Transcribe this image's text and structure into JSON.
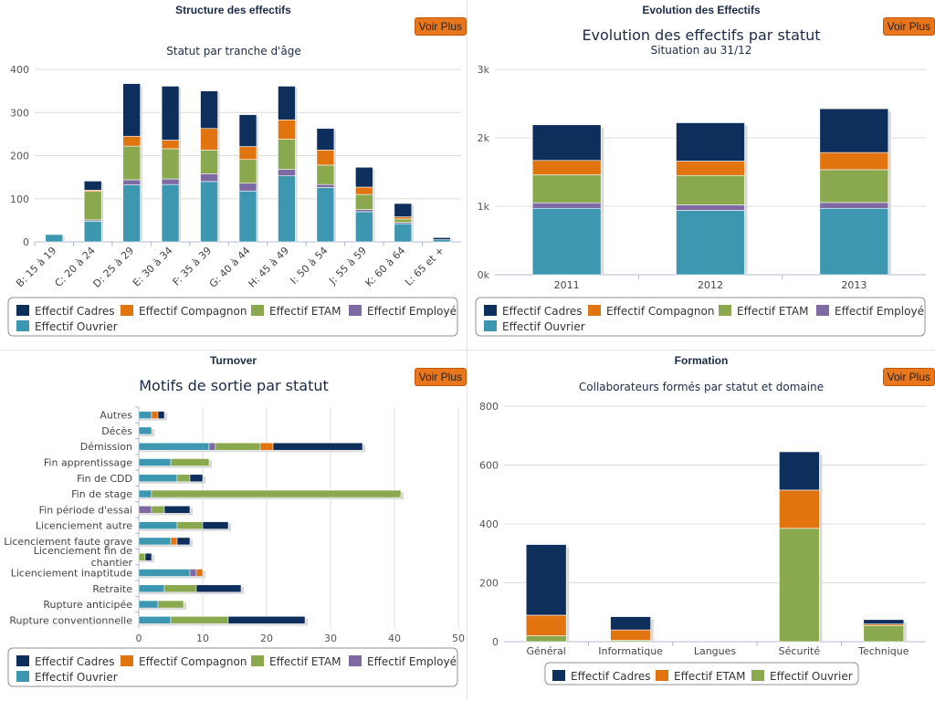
{
  "colors": {
    "cadres": "#0e2e5c",
    "compagnon": "#e2740f",
    "etam": "#8aa84e",
    "employe": "#7d6aa3",
    "ouvrier": "#3d97b1"
  },
  "panels": [
    {
      "header": "Structure des effectifs",
      "button": "Voir Plus"
    },
    {
      "header": "Evolution des Effectifs",
      "button": "Voir Plus"
    },
    {
      "header": "Turnover",
      "button": "Voir Plus"
    },
    {
      "header": "Formation",
      "button": "Voir Plus"
    }
  ],
  "chart_data": [
    {
      "type": "bar",
      "stacked": true,
      "title": "Statut par tranche d'âge",
      "ylim": [
        0,
        400
      ],
      "yticks": [
        0,
        100,
        200,
        300,
        400
      ],
      "grid": true,
      "legend_position": "bottom",
      "categories": [
        "B: 15 à 19",
        "C: 20 à 24",
        "D: 25 à 29",
        "E: 30 à 34",
        "F: 35 à 39",
        "G: 40 à 44",
        "H: 45 à 49",
        "I: 50 à 54",
        "J: 55 à 59",
        "K: 60 à 64",
        "L: 65 et +"
      ],
      "series": [
        {
          "name": "Effectif Ouvrier",
          "key": "ouvrier",
          "values": [
            17,
            48,
            132,
            133,
            140,
            118,
            153,
            126,
            70,
            42,
            5
          ]
        },
        {
          "name": "Effectif Employé",
          "key": "employe",
          "values": [
            0,
            3,
            12,
            13,
            18,
            18,
            15,
            7,
            5,
            3,
            0
          ]
        },
        {
          "name": "Effectif ETAM",
          "key": "etam",
          "values": [
            0,
            66,
            78,
            70,
            55,
            55,
            70,
            45,
            35,
            8,
            0
          ]
        },
        {
          "name": "Effectif Compagnon",
          "key": "compagnon",
          "values": [
            0,
            3,
            23,
            20,
            50,
            30,
            45,
            35,
            17,
            5,
            0
          ]
        },
        {
          "name": "Effectif Cadres",
          "key": "cadres",
          "values": [
            0,
            21,
            122,
            125,
            87,
            74,
            78,
            50,
            46,
            31,
            5
          ]
        }
      ],
      "legend": [
        "Effectif Cadres",
        "Effectif Compagnon",
        "Effectif ETAM",
        "Effectif Employé",
        "Effectif Ouvrier"
      ]
    },
    {
      "type": "bar",
      "stacked": true,
      "title": "Evolution des effectifs par statut",
      "subtitle": "Situation au 31/12",
      "ylim": [
        0,
        3000
      ],
      "yticks": [
        "0k",
        "1k",
        "2k",
        "3k"
      ],
      "grid": true,
      "legend_position": "bottom",
      "categories": [
        "2011",
        "2012",
        "2013"
      ],
      "series": [
        {
          "name": "Effectif Ouvrier",
          "key": "ouvrier",
          "values": [
            970,
            940,
            970
          ]
        },
        {
          "name": "Effectif Employé",
          "key": "employe",
          "values": [
            80,
            80,
            85
          ]
        },
        {
          "name": "Effectif ETAM",
          "key": "etam",
          "values": [
            410,
            430,
            480
          ]
        },
        {
          "name": "Effectif Compagnon",
          "key": "compagnon",
          "values": [
            210,
            210,
            250
          ]
        },
        {
          "name": "Effectif Cadres",
          "key": "cadres",
          "values": [
            520,
            560,
            640
          ]
        }
      ],
      "legend": [
        "Effectif Cadres",
        "Effectif Compagnon",
        "Effectif ETAM",
        "Effectif Employé",
        "Effectif Ouvrier"
      ]
    },
    {
      "type": "bar",
      "orientation": "horizontal",
      "stacked": true,
      "title": "Motifs de sortie par statut",
      "xlim": [
        0,
        50
      ],
      "xticks": [
        0,
        10,
        20,
        30,
        40,
        50
      ],
      "grid": true,
      "legend_position": "bottom",
      "categories": [
        "Autres",
        "Décès",
        "Démission",
        "Fin apprentissage",
        "Fin de CDD",
        "Fin de stage",
        "Fin période d'essai",
        "Licenciement autre",
        "Licenciement faute grave",
        "Licenciement fin de chantier",
        "Licenciement inaptitude",
        "Retraite",
        "Rupture anticipée",
        "Rupture conventionnelle"
      ],
      "series": [
        {
          "name": "Effectif Ouvrier",
          "key": "ouvrier",
          "values": [
            2,
            2,
            11,
            5,
            6,
            2,
            0,
            6,
            5,
            0,
            8,
            4,
            3,
            5
          ]
        },
        {
          "name": "Effectif Employé",
          "key": "employe",
          "values": [
            0,
            0,
            1,
            0,
            0,
            0,
            2,
            0,
            0,
            0,
            1,
            0,
            0,
            0
          ]
        },
        {
          "name": "Effectif ETAM",
          "key": "etam",
          "values": [
            0,
            0,
            7,
            6,
            2,
            39,
            2,
            4,
            0,
            1,
            0,
            5,
            4,
            9
          ]
        },
        {
          "name": "Effectif Compagnon",
          "key": "compagnon",
          "values": [
            1,
            0,
            2,
            0,
            0,
            0,
            0,
            0,
            1,
            0,
            1,
            0,
            0,
            0
          ]
        },
        {
          "name": "Effectif Cadres",
          "key": "cadres",
          "values": [
            1,
            0,
            14,
            0,
            2,
            0,
            4,
            4,
            2,
            1,
            0,
            7,
            0,
            12
          ]
        }
      ],
      "legend": [
        "Effectif Cadres",
        "Effectif Compagnon",
        "Effectif ETAM",
        "Effectif Employé",
        "Effectif Ouvrier"
      ]
    },
    {
      "type": "bar",
      "stacked": true,
      "title": "Collaborateurs formés par statut et domaine",
      "ylim": [
        0,
        800
      ],
      "yticks": [
        0,
        200,
        400,
        600,
        800
      ],
      "grid": true,
      "legend_position": "bottom",
      "categories": [
        "Général",
        "Informatique",
        "Langues",
        "Sécurité",
        "Technique"
      ],
      "series": [
        {
          "name": "Effectif Ouvrier",
          "key": "etam",
          "values": [
            20,
            5,
            0,
            385,
            55
          ]
        },
        {
          "name": "Effectif ETAM",
          "key": "compagnon",
          "values": [
            70,
            35,
            0,
            130,
            5
          ]
        },
        {
          "name": "Effectif Cadres",
          "key": "cadres",
          "values": [
            240,
            45,
            0,
            130,
            15
          ]
        }
      ],
      "legend": [
        "Effectif Cadres",
        "Effectif ETAM",
        "Effectif Ouvrier"
      ]
    }
  ]
}
